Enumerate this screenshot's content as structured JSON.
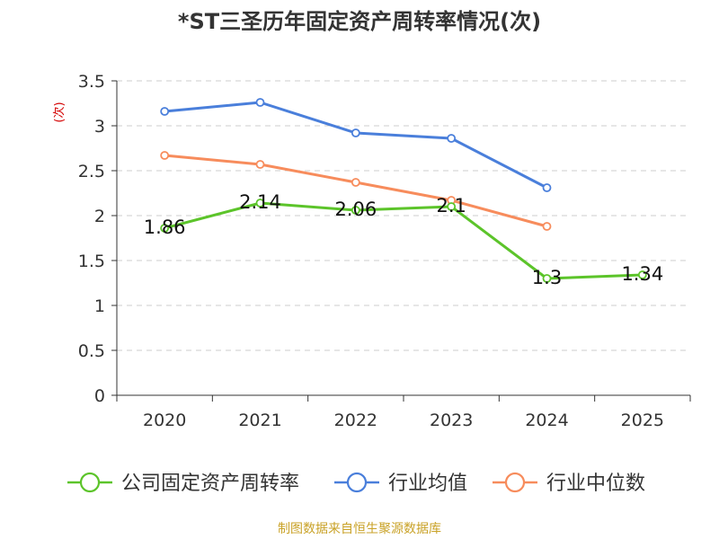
{
  "chart_data": {
    "type": "line",
    "title": "*ST三圣历年固定资产周转率情况(次)",
    "ylabel": "(次)",
    "xlabel": "",
    "ylim": [
      0,
      3.5
    ],
    "yticks": [
      "0",
      "0.5",
      "1",
      "1.5",
      "2",
      "2.5",
      "3",
      "3.5"
    ],
    "grid": true,
    "legend_position": "bottom",
    "categories": [
      "2020",
      "2021",
      "2022",
      "2023",
      "2024",
      "2025"
    ],
    "series": [
      {
        "name": "公司固定资产周转率",
        "color": "#5cc42a",
        "values": [
          1.86,
          2.14,
          2.06,
          2.1,
          1.3,
          1.34
        ],
        "labels": [
          "1.86",
          "2.14",
          "2.06",
          "2.1",
          "1.3",
          "1.34"
        ],
        "show_labels": true
      },
      {
        "name": "行业均值",
        "color": "#4a7fdb",
        "values": [
          3.16,
          3.26,
          2.92,
          2.86,
          2.31,
          null
        ],
        "show_labels": false
      },
      {
        "name": "行业中位数",
        "color": "#f78c5c",
        "values": [
          2.67,
          2.57,
          2.37,
          2.17,
          1.88,
          null
        ],
        "show_labels": false
      }
    ]
  },
  "source_note": "制图数据来自恒生聚源数据库"
}
